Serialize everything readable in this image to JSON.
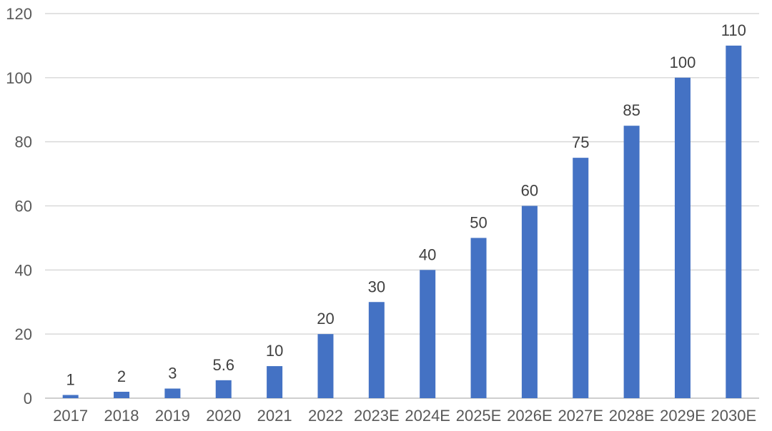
{
  "chart_data": {
    "type": "bar",
    "categories": [
      "2017",
      "2018",
      "2019",
      "2020",
      "2021",
      "2022",
      "2023E",
      "2024E",
      "2025E",
      "2026E",
      "2027E",
      "2028E",
      "2029E",
      "2030E"
    ],
    "values": [
      1,
      2,
      3,
      5.6,
      10,
      20,
      30,
      40,
      50,
      60,
      75,
      85,
      100,
      110
    ],
    "data_labels": [
      "1",
      "2",
      "3",
      "5.6",
      "10",
      "20",
      "30",
      "40",
      "50",
      "60",
      "75",
      "85",
      "100",
      "110"
    ],
    "yticks": [
      0,
      20,
      40,
      60,
      80,
      100,
      120
    ],
    "ylim": [
      0,
      120
    ],
    "grid": true,
    "legend": "none",
    "title": "",
    "xlabel": "",
    "ylabel": "",
    "bar_color": "#4472c4",
    "grid_color": "#d9d9d9"
  }
}
